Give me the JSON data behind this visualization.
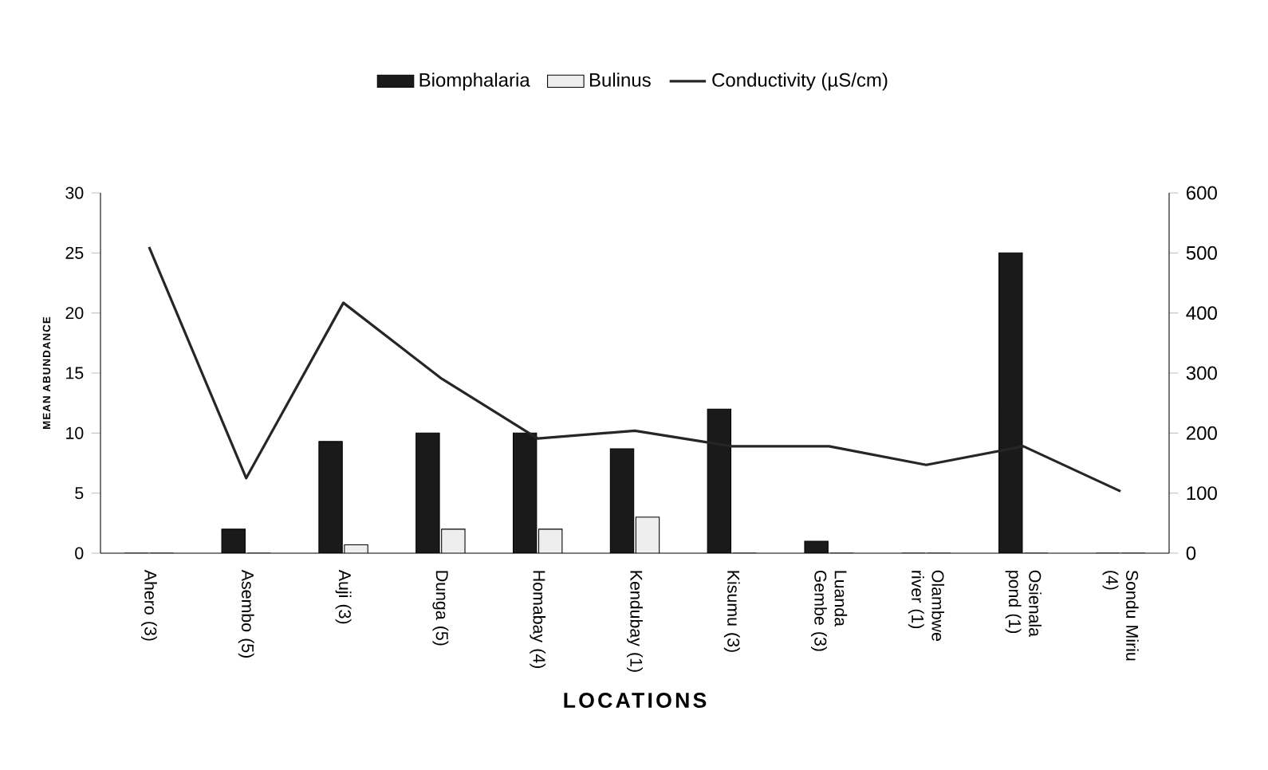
{
  "chart_data": {
    "type": "bar",
    "xlabel": "LOCATIONS",
    "ylabel": "MEAN ABUNDANCE",
    "categories": [
      "Ahero (3)",
      "Asembo (5)",
      "Auji (3)",
      "Dunga (5)",
      "Homabay (4)",
      "Kendubay (1)",
      "Kisumu (3)",
      "Luanda Gembe (3)",
      "Olambwe river (1)",
      "Osienala pond (1)",
      "Sondu Miriu (4)"
    ],
    "series": [
      {
        "name": "Biomphalaria",
        "color": "#1a1a1a",
        "values": [
          0,
          2,
          9.3,
          10,
          10,
          8.7,
          12,
          1,
          0,
          25,
          0
        ]
      },
      {
        "name": "Bulinus",
        "color": "#eeeeee",
        "values": [
          0,
          0,
          0.7,
          2,
          2,
          3,
          0,
          0,
          0,
          0,
          0
        ]
      },
      {
        "name": "Conductivity (µS/cm)",
        "type": "line",
        "axis": "y2",
        "color": "#262626",
        "values": [
          510,
          125,
          417,
          292,
          191,
          204,
          178,
          178,
          147,
          178,
          103
        ]
      }
    ],
    "ylim": [
      0,
      30
    ],
    "yticks": [
      0,
      5,
      10,
      15,
      20,
      25,
      30
    ],
    "y2lim": [
      0,
      600
    ],
    "y2ticks": [
      0,
      100,
      200,
      300,
      400,
      500,
      600
    ],
    "legend": "top",
    "grid": false,
    "marker": "none",
    "line_style": "solid"
  }
}
